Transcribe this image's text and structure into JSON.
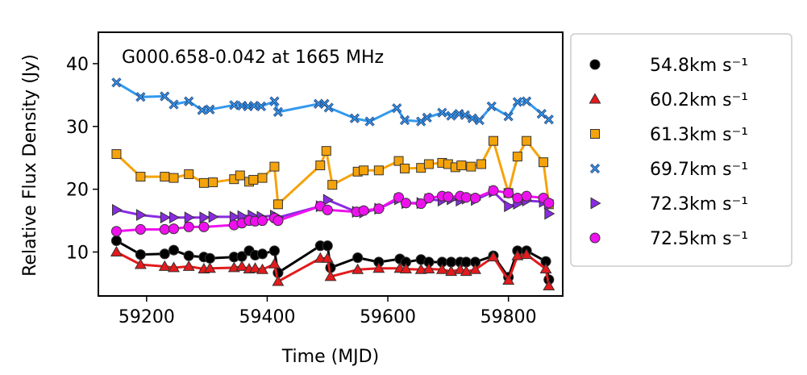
{
  "chart_data": {
    "type": "line",
    "title": "",
    "annotation": "G000.658-0.042 at 1665 MHz",
    "xlabel": "Time (MJD)",
    "ylabel": "Relative Flux Density (Jy)",
    "xlim": [
      59120,
      59890
    ],
    "ylim": [
      3,
      45
    ],
    "xticks": [
      59200,
      59400,
      59600,
      59800
    ],
    "yticks": [
      10,
      20,
      30,
      40
    ],
    "grid": false,
    "legend_position": "outside-right",
    "series": [
      {
        "name": "54.8km s⁻¹",
        "color": "#000000",
        "marker": "circle",
        "x": [
          59150,
          59190,
          59230,
          59245,
          59270,
          59295,
          59305,
          59345,
          59358,
          59370,
          59380,
          59392,
          59412,
          59418,
          59488,
          59500,
          59505,
          59550,
          59585,
          59620,
          59630,
          59655,
          59668,
          59690,
          59705,
          59720,
          59730,
          59745,
          59775,
          59800,
          59815,
          59830,
          59862,
          59867
        ],
        "y": [
          11.8,
          9.6,
          9.7,
          10.3,
          9.4,
          9.2,
          9.0,
          9.2,
          9.3,
          10.2,
          9.5,
          9.7,
          10.2,
          6.7,
          11.0,
          11.0,
          7.5,
          9.1,
          8.4,
          8.9,
          8.4,
          8.8,
          8.4,
          8.4,
          8.4,
          8.4,
          8.4,
          8.4,
          9.4,
          6.0,
          10.2,
          10.2,
          8.5,
          5.6
        ]
      },
      {
        "name": "60.2km s⁻¹",
        "color": "#e41a1c",
        "marker": "triangle",
        "x": [
          59150,
          59190,
          59230,
          59245,
          59270,
          59295,
          59305,
          59345,
          59358,
          59370,
          59380,
          59392,
          59412,
          59418,
          59488,
          59500,
          59505,
          59550,
          59585,
          59620,
          59630,
          59655,
          59668,
          59690,
          59705,
          59720,
          59730,
          59745,
          59775,
          59800,
          59815,
          59830,
          59862,
          59867
        ],
        "y": [
          10.0,
          8.0,
          7.7,
          7.5,
          7.7,
          7.3,
          7.4,
          7.5,
          7.7,
          7.3,
          7.4,
          7.2,
          8.1,
          5.3,
          9.0,
          9.0,
          6.1,
          7.2,
          7.4,
          7.4,
          7.3,
          7.2,
          7.3,
          7.2,
          6.9,
          7.2,
          6.9,
          7.2,
          9.2,
          5.5,
          9.4,
          9.6,
          7.3,
          4.6
        ]
      },
      {
        "name": "61.3km s⁻¹",
        "color": "#f5a30a",
        "marker": "square",
        "x": [
          59150,
          59190,
          59230,
          59245,
          59270,
          59295,
          59310,
          59345,
          59355,
          59370,
          59377,
          59392,
          59412,
          59418,
          59488,
          59498,
          59508,
          59550,
          59560,
          59585,
          59618,
          59628,
          59655,
          59668,
          59690,
          59700,
          59712,
          59722,
          59738,
          59755,
          59775,
          59800,
          59815,
          59830,
          59858,
          59867
        ],
        "y": [
          25.6,
          22.0,
          22.0,
          21.8,
          22.4,
          21.0,
          21.1,
          21.6,
          22.2,
          21.2,
          21.5,
          21.8,
          23.6,
          17.6,
          23.8,
          26.1,
          20.7,
          22.8,
          23.0,
          23.0,
          24.5,
          23.3,
          23.4,
          24.0,
          24.2,
          24.0,
          23.5,
          23.8,
          23.6,
          24.0,
          27.7,
          19.4,
          25.2,
          27.7,
          24.3,
          17.6
        ]
      },
      {
        "name": "69.7km s⁻¹",
        "color": "#3399ee",
        "marker": "cross",
        "x": [
          59150,
          59190,
          59230,
          59245,
          59270,
          59292,
          59305,
          59345,
          59358,
          59368,
          59378,
          59390,
          59412,
          59418,
          59485,
          59495,
          59502,
          59545,
          59570,
          59615,
          59628,
          59655,
          59665,
          59690,
          59705,
          59718,
          59728,
          59740,
          59752,
          59772,
          59800,
          59815,
          59830,
          59855,
          59867
        ],
        "y": [
          37.0,
          34.7,
          34.8,
          33.5,
          34.0,
          32.6,
          32.7,
          33.4,
          33.3,
          33.2,
          33.3,
          33.2,
          34.0,
          32.3,
          33.6,
          33.6,
          33.0,
          31.3,
          30.8,
          32.9,
          31.0,
          30.8,
          31.4,
          32.2,
          31.7,
          32.0,
          31.8,
          31.3,
          31.0,
          33.2,
          31.6,
          33.9,
          34.0,
          32.0,
          31.1
        ]
      },
      {
        "name": "72.3km s⁻¹",
        "color": "#8a2be2",
        "marker": "triangle-right",
        "x": [
          59150,
          59190,
          59230,
          59245,
          59270,
          59295,
          59310,
          59345,
          59358,
          59375,
          59390,
          59412,
          59418,
          59488,
          59500,
          59548,
          59560,
          59585,
          59618,
          59630,
          59655,
          59668,
          59690,
          59705,
          59720,
          59730,
          59745,
          59775,
          59800,
          59815,
          59830,
          59858,
          59867
        ],
        "y": [
          16.7,
          15.9,
          15.5,
          15.5,
          15.5,
          15.5,
          15.6,
          15.6,
          15.7,
          15.8,
          15.6,
          15.8,
          15.5,
          17.3,
          18.3,
          16.4,
          16.3,
          16.9,
          18.4,
          17.8,
          17.8,
          18.4,
          18.2,
          18.4,
          18.2,
          18.5,
          18.3,
          19.6,
          17.3,
          17.7,
          18.2,
          18.0,
          16.1
        ]
      },
      {
        "name": "72.5km s⁻¹",
        "color": "#ee11ee",
        "marker": "circle",
        "x": [
          59150,
          59190,
          59230,
          59245,
          59270,
          59295,
          59345,
          59358,
          59370,
          59380,
          59392,
          59412,
          59418,
          59488,
          59500,
          59548,
          59560,
          59585,
          59618,
          59630,
          59655,
          59668,
          59690,
          59700,
          59720,
          59730,
          59745,
          59775,
          59800,
          59815,
          59830,
          59858,
          59867
        ],
        "y": [
          13.3,
          13.6,
          13.6,
          13.7,
          14.0,
          14.0,
          14.3,
          14.6,
          15.0,
          14.9,
          15.0,
          15.4,
          15.0,
          17.3,
          16.7,
          16.4,
          16.6,
          16.9,
          18.7,
          17.8,
          17.7,
          18.6,
          18.9,
          18.8,
          18.9,
          18.7,
          18.6,
          19.8,
          19.4,
          18.6,
          18.9,
          18.6,
          17.8
        ]
      }
    ]
  }
}
